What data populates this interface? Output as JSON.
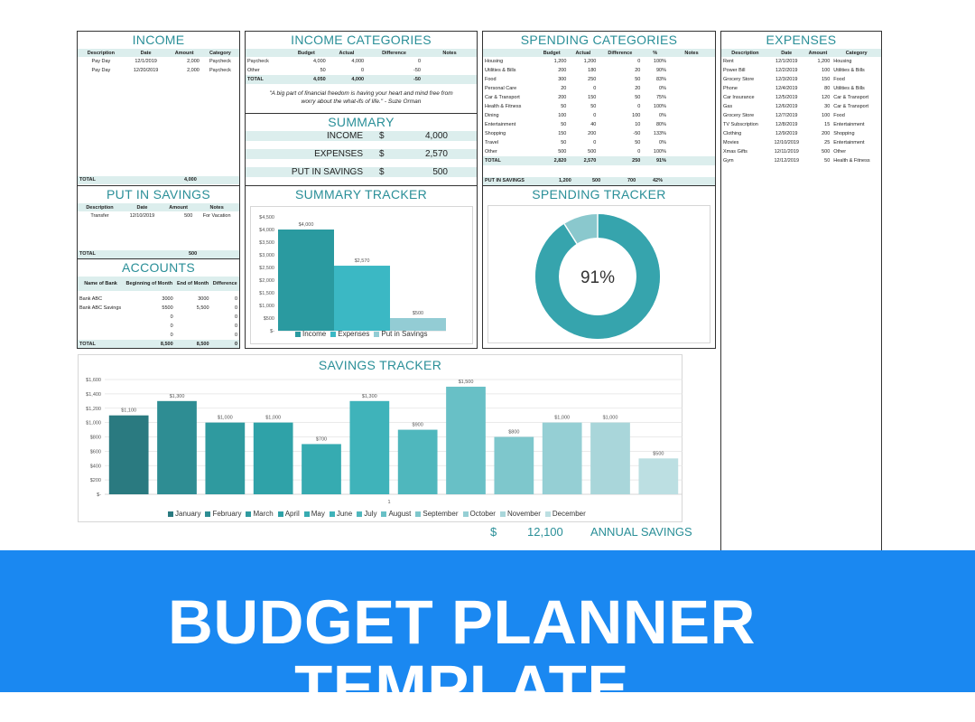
{
  "income": {
    "title": "INCOME",
    "headers": [
      "Description",
      "Date",
      "Amount",
      "Category"
    ],
    "rows": [
      [
        "Pay Day",
        "12/1/2019",
        "2,000",
        "Paycheck"
      ],
      [
        "Pay Day",
        "12/20/2019",
        "2,000",
        "Paycheck"
      ]
    ],
    "total_label": "TOTAL",
    "total_value": "4,000"
  },
  "income_categories": {
    "title": "INCOME CATEGORIES",
    "headers": [
      "",
      "Budget",
      "Actual",
      "Difference",
      "Notes"
    ],
    "rows": [
      [
        "Paycheck",
        "4,000",
        "4,000",
        "0",
        ""
      ],
      [
        "Other",
        "50",
        "0",
        "-50",
        ""
      ],
      [
        "TOTAL",
        "4,050",
        "4,000",
        "-50",
        ""
      ]
    ],
    "quote": "\"A big part of financial freedom is having your heart and mind free from worry about the what-ifs of life.\" - Suze Orman"
  },
  "summary": {
    "title": "SUMMARY",
    "rows": [
      {
        "label": "INCOME",
        "currency": "$",
        "value": "4,000"
      },
      {
        "label": "EXPENSES",
        "currency": "$",
        "value": "2,570"
      },
      {
        "label": "PUT IN SAVINGS",
        "currency": "$",
        "value": "500"
      }
    ]
  },
  "spending_categories": {
    "title": "SPENDING CATEGORIES",
    "headers": [
      "",
      "Budget",
      "Actual",
      "Difference",
      "%",
      "Notes"
    ],
    "rows": [
      [
        "Housing",
        "1,200",
        "1,200",
        "0",
        "100%",
        ""
      ],
      [
        "Utilities & Bills",
        "200",
        "180",
        "20",
        "90%",
        ""
      ],
      [
        "Food",
        "300",
        "250",
        "50",
        "83%",
        ""
      ],
      [
        "Personal Care",
        "20",
        "0",
        "20",
        "0%",
        ""
      ],
      [
        "Car & Transport",
        "200",
        "150",
        "50",
        "75%",
        ""
      ],
      [
        "Health & Fitness",
        "50",
        "50",
        "0",
        "100%",
        ""
      ],
      [
        "Dining",
        "100",
        "0",
        "100",
        "0%",
        ""
      ],
      [
        "Entertainment",
        "50",
        "40",
        "10",
        "80%",
        ""
      ],
      [
        "Shopping",
        "150",
        "200",
        "-50",
        "133%",
        ""
      ],
      [
        "Travel",
        "50",
        "0",
        "50",
        "0%",
        ""
      ],
      [
        "Other",
        "500",
        "500",
        "0",
        "100%",
        ""
      ],
      [
        "TOTAL",
        "2,820",
        "2,570",
        "250",
        "91%",
        ""
      ]
    ],
    "savings_row": [
      "PUT IN SAVINGS",
      "1,200",
      "500",
      "700",
      "42%"
    ]
  },
  "expenses": {
    "title": "EXPENSES",
    "headers": [
      "Description",
      "Date",
      "Amount",
      "Category"
    ],
    "rows": [
      [
        "Rent",
        "12/1/2019",
        "1,200",
        "Housing"
      ],
      [
        "Power Bill",
        "12/2/2019",
        "100",
        "Utilities & Bills"
      ],
      [
        "Grocery Store",
        "12/3/2019",
        "150",
        "Food"
      ],
      [
        "Phone",
        "12/4/2019",
        "80",
        "Utilities & Bills"
      ],
      [
        "Car Insurance",
        "12/5/2019",
        "120",
        "Car & Transport"
      ],
      [
        "Gas",
        "12/6/2019",
        "30",
        "Car & Transport"
      ],
      [
        "Grocery Store",
        "12/7/2019",
        "100",
        "Food"
      ],
      [
        "TV Subscription",
        "12/8/2019",
        "15",
        "Entertainment"
      ],
      [
        "Clothing",
        "12/9/2019",
        "200",
        "Shopping"
      ],
      [
        "Movies",
        "12/10/2019",
        "25",
        "Entertainment"
      ],
      [
        "Xmas Gifts",
        "12/11/2019",
        "500",
        "Other"
      ],
      [
        "Gym",
        "12/12/2019",
        "50",
        "Health & Fitness"
      ]
    ]
  },
  "put_in_savings": {
    "title": "PUT IN SAVINGS",
    "headers": [
      "Description",
      "Date",
      "Amount",
      "Notes"
    ],
    "rows": [
      [
        "Transfer",
        "12/10/2019",
        "500",
        "For Vacation"
      ]
    ],
    "total_label": "TOTAL",
    "total_value": "500"
  },
  "accounts": {
    "title": "ACCOUNTS",
    "headers": [
      "Name of Bank",
      "Beginning of Month",
      "End of Month",
      "Difference"
    ],
    "rows": [
      [
        "Bank ABC",
        "3000",
        "3000",
        "0"
      ],
      [
        "Bank ABC Savings",
        "5500",
        "5,500",
        "0"
      ],
      [
        "",
        "0",
        "",
        "0"
      ],
      [
        "",
        "0",
        "",
        "0"
      ],
      [
        "",
        "0",
        "",
        "0"
      ]
    ],
    "total": [
      "TOTAL",
      "8,500",
      "8,500",
      "0"
    ]
  },
  "summary_tracker": {
    "title": "SUMMARY TRACKER"
  },
  "spending_tracker": {
    "title": "SPENDING TRACKER"
  },
  "savings_tracker": {
    "title": "SAVINGS TRACKER",
    "footer_currency": "$",
    "footer_value": "12,100",
    "footer_label": "ANNUAL SAVINGS"
  },
  "banner": {
    "title": "BUDGET PLANNER TEMPLATE"
  },
  "chart_data": [
    {
      "type": "bar",
      "categories": [
        "Income",
        "Expenses",
        "Put in Savings"
      ],
      "values": [
        4000,
        2570,
        500
      ],
      "data_labels": [
        "$4,000",
        "$2,570",
        "$500"
      ],
      "ylim": [
        0,
        4500
      ],
      "y_ticks": [
        "$-",
        "$500",
        "$1,000",
        "$1,500",
        "$2,000",
        "$2,500",
        "$3,000",
        "$3,500",
        "$4,000",
        "$4,500"
      ],
      "colors": [
        "#2a9aa0",
        "#3bb8c4",
        "#93ccd4"
      ],
      "legend": "bottom"
    },
    {
      "type": "pie",
      "variant": "donut",
      "value_pct": 91,
      "center_label": "91%",
      "colors": [
        "#36a4ad",
        "#8ac8cd"
      ]
    },
    {
      "type": "bar",
      "categories": [
        "January",
        "February",
        "March",
        "April",
        "May",
        "June",
        "July",
        "August",
        "September",
        "October",
        "November",
        "December"
      ],
      "values": [
        1100,
        1300,
        1000,
        1000,
        700,
        1300,
        900,
        1500,
        800,
        1000,
        1000,
        500
      ],
      "data_labels": [
        "$1,100",
        "$1,300",
        "$1,000",
        "$1,000",
        "$700",
        "$1,300",
        "$900",
        "$1,500",
        "$800",
        "$1,000",
        "$1,000",
        "$500"
      ],
      "x_tick": "1",
      "ylim": [
        0,
        1600
      ],
      "y_ticks": [
        "$-",
        "$200",
        "$400",
        "$600",
        "$800",
        "$1,000",
        "$1,200",
        "$1,400",
        "$1,600"
      ],
      "colors": [
        "#2a7a80",
        "#2e8d93",
        "#2f9a9f",
        "#2fa2a8",
        "#36abb1",
        "#3fb3ba",
        "#4fb7bd",
        "#68c0c6",
        "#7ec7cc",
        "#95cfd4",
        "#a9d6da",
        "#bcdfe2"
      ],
      "legend": "bottom"
    }
  ]
}
